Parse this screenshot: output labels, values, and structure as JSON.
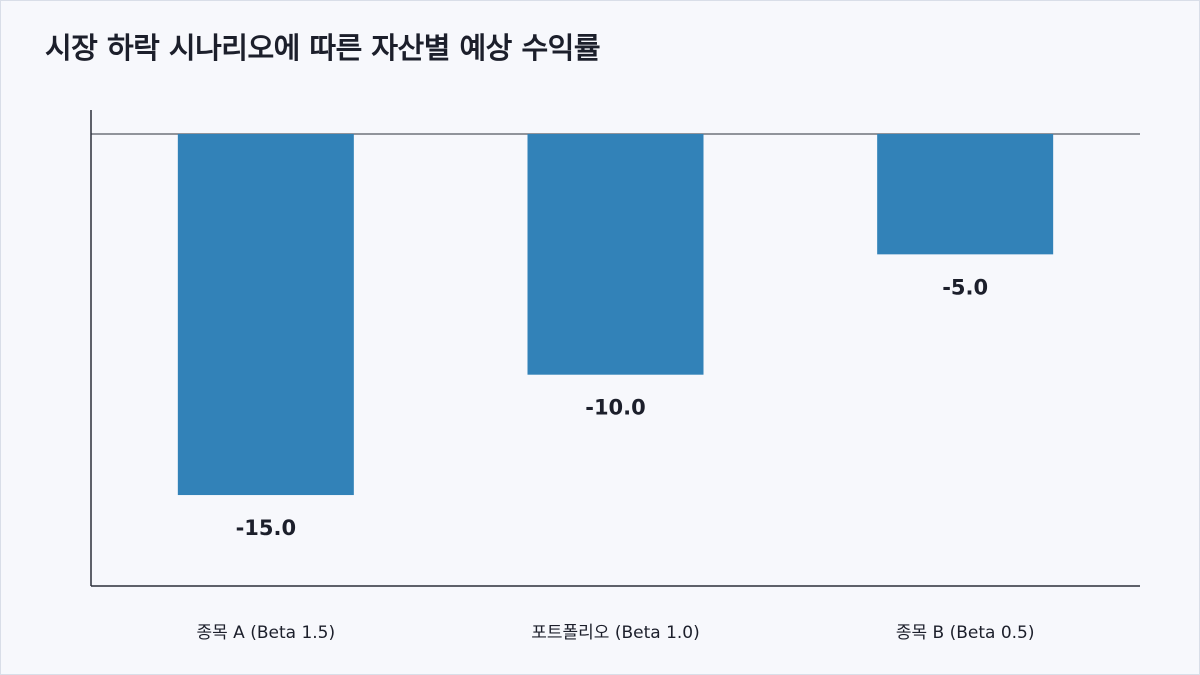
{
  "chart_data": {
    "type": "bar",
    "title": "시장 하락 시나리오에 따른 자산별 예상 수익률",
    "categories": [
      "종목 A (Beta 1.5)",
      "포트폴리오 (Beta 1.0)",
      "종목 B (Beta 0.5)"
    ],
    "values": [
      -15.0,
      -10.0,
      -5.0
    ],
    "value_labels": [
      "-15.0",
      "-10.0",
      "-5.0"
    ],
    "xlabel": "",
    "ylabel": "",
    "ylim": [
      -18.8,
      1.0
    ],
    "grid": false,
    "legend": "none",
    "bar_color": "#3282b8"
  }
}
